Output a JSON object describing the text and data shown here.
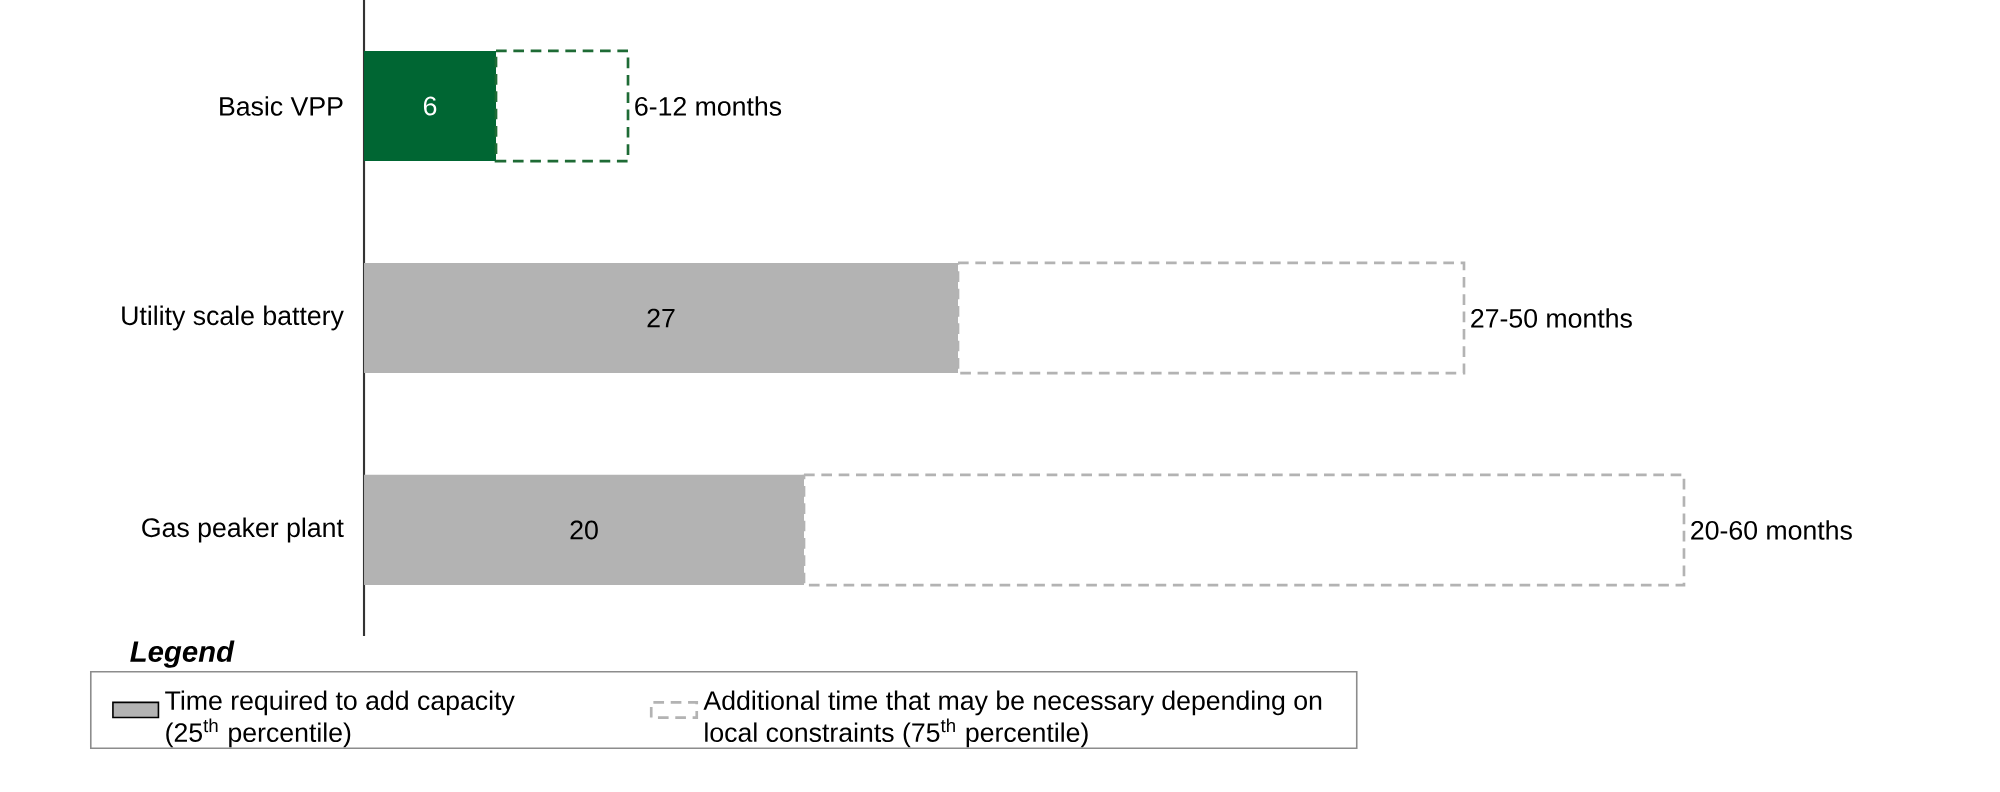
{
  "chart_data": {
    "type": "bar",
    "orientation": "horizontal",
    "stacked": true,
    "legend_title": "Legend",
    "legend": "bottom",
    "categories": [
      "Basic VPP",
      "Utility scale battery",
      "Gas peaker plant"
    ],
    "series": [
      {
        "name": "Time required to add capacity (25$^{th}$ percentile)",
        "color": "#b3b3b3",
        "colors": [
          "#006633",
          "#b3b3b3",
          "#b3b3b3"
        ],
        "values": [
          6,
          27,
          20
        ],
        "value_labels": [
          "6",
          "27",
          "20"
        ]
      },
      {
        "name": "Additional time that may be necessary depending on local constraints (75$^{th}$ percentile)",
        "color": "#b3b3b3",
        "colors": [
          "#1e6b35",
          "#b3b3b3",
          "#b3b3b3"
        ],
        "line_style": "dashed",
        "values": [
          6,
          23,
          40
        ],
        "value_labels": [
          "6-12 months",
          "27-50 months",
          "20-60 months"
        ]
      }
    ]
  }
}
